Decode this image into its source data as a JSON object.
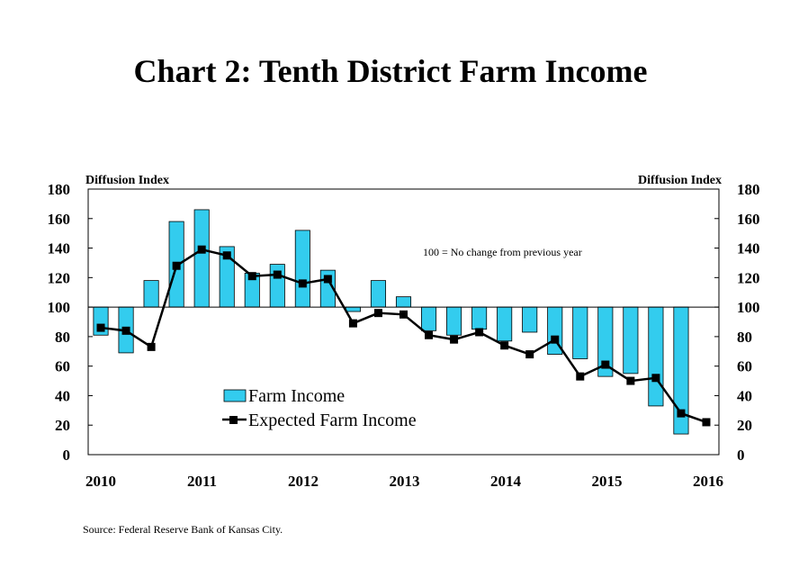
{
  "chart_data": {
    "type": "bar",
    "title": "Chart 2: Tenth District Farm Income",
    "ylabel_left": "Diffusion Index",
    "ylabel_right": "Diffusion Index",
    "ylim": [
      0,
      180
    ],
    "y_ticks": [
      0,
      20,
      40,
      60,
      80,
      100,
      120,
      140,
      160,
      180
    ],
    "baseline": 100,
    "x_tick_labels": [
      "2010",
      "2011",
      "2012",
      "2013",
      "2014",
      "2015",
      "2016"
    ],
    "x": [
      "2010Q2",
      "2010Q3",
      "2010Q4",
      "2011Q1",
      "2011Q2",
      "2011Q3",
      "2011Q4",
      "2012Q1",
      "2012Q2",
      "2012Q3",
      "2012Q4",
      "2013Q1",
      "2013Q2",
      "2013Q3",
      "2013Q4",
      "2014Q1",
      "2014Q2",
      "2014Q3",
      "2014Q4",
      "2015Q1",
      "2015Q2",
      "2015Q3",
      "2015Q4",
      "2016Q1",
      "2016Q2"
    ],
    "annotation": "100 = No change from previous year",
    "legend_position": "lower-left",
    "series": [
      {
        "name": "Farm Income",
        "type": "bar",
        "color": "#33ccee",
        "values": [
          81,
          69,
          118,
          158,
          166,
          141,
          123,
          129,
          152,
          125,
          97,
          118,
          107,
          84,
          81,
          85,
          77,
          83,
          68,
          65,
          53,
          55,
          33,
          14,
          null
        ]
      },
      {
        "name": "Expected Farm Income",
        "type": "line",
        "color": "#000000",
        "values": [
          86,
          84,
          73,
          128,
          139,
          135,
          121,
          122,
          116,
          119,
          89,
          96,
          95,
          81,
          78,
          83,
          74,
          68,
          78,
          53,
          61,
          50,
          52,
          28,
          22
        ]
      }
    ]
  },
  "source": "Source: Federal Reserve Bank of Kansas City."
}
